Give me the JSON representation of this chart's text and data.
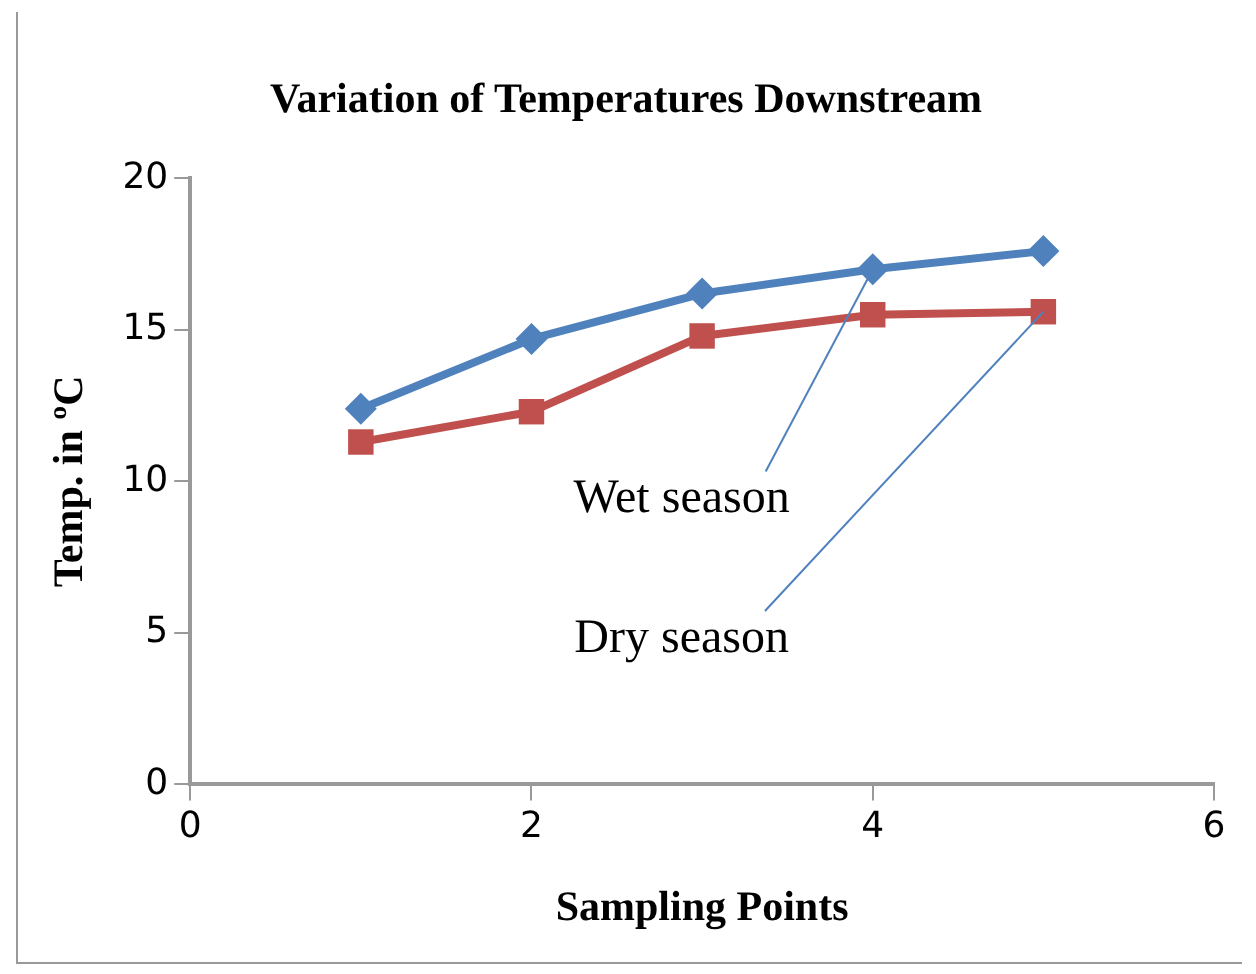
{
  "chart_data": {
    "type": "line",
    "title": "Variation of Temperatures Downstream",
    "xlabel": "Sampling Points",
    "ylabel": "Temp. in ºC",
    "x": [
      1,
      2,
      3,
      4,
      5
    ],
    "xlim": [
      0,
      6
    ],
    "xticks": [
      0,
      2,
      4,
      6
    ],
    "ylim": [
      0,
      20
    ],
    "yticks": [
      0,
      5,
      10,
      15,
      20
    ],
    "grid": false,
    "legend": false,
    "series": [
      {
        "name": "Wet season",
        "color": "#4f81bd",
        "marker": "diamond",
        "values": [
          12.4,
          14.7,
          16.2,
          17.0,
          17.6
        ]
      },
      {
        "name": "Dry season",
        "color": "#c0504d",
        "marker": "square",
        "values": [
          11.3,
          12.3,
          14.8,
          15.5,
          15.6
        ]
      }
    ]
  }
}
